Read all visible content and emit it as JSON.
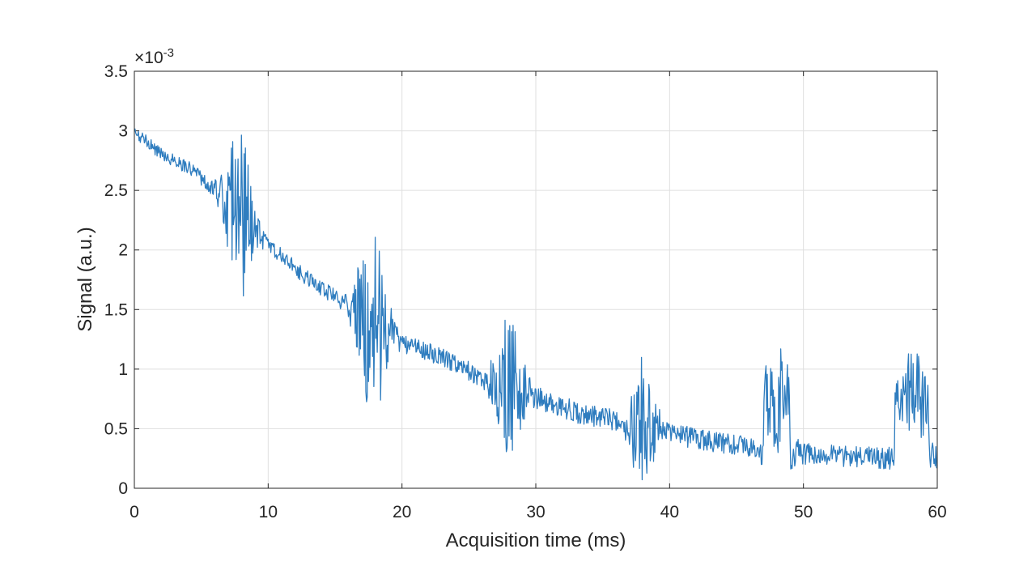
{
  "chart_data": {
    "type": "line",
    "xlabel": "Acquisition time (ms)",
    "ylabel": "Signal (a.u.)",
    "y_exponent_label": "×10",
    "y_exponent_power": "-3",
    "xlim": [
      0,
      60
    ],
    "ylim": [
      0,
      3.5
    ],
    "xticks": [
      0,
      10,
      20,
      30,
      40,
      50,
      60
    ],
    "yticks": [
      0,
      0.5,
      1,
      1.5,
      2,
      2.5,
      3,
      3.5
    ],
    "xtick_labels": [
      "0",
      "10",
      "20",
      "30",
      "40",
      "50",
      "60"
    ],
    "ytick_labels": [
      "0",
      "0.5",
      "1",
      "1.5",
      "2",
      "2.5",
      "3",
      "3.5"
    ],
    "grid": true,
    "line_color": "#2f7dbf",
    "series": [
      {
        "x": [
          0,
          0.5,
          1,
          1.5,
          2,
          2.5,
          3,
          3.5,
          4,
          4.5,
          5,
          5.5,
          6,
          6.5,
          7,
          7.5,
          8,
          8.5,
          9,
          9.5,
          10,
          10.5,
          11,
          11.5,
          12,
          12.5,
          13,
          13.5,
          14,
          14.5,
          15,
          15.5,
          16,
          16.5,
          17,
          17.5,
          18,
          18.5,
          19,
          19.5,
          20,
          20.5,
          21,
          21.5,
          22,
          22.5,
          23,
          23.5,
          24,
          24.5,
          25,
          25.5,
          26,
          26.5,
          27,
          27.5,
          28,
          28.5,
          29,
          29.5,
          30,
          30.5,
          31,
          31.5,
          32,
          32.5,
          33,
          33.5,
          34,
          34.5,
          35,
          35.5,
          36,
          36.5,
          37,
          37.5,
          38,
          38.5,
          39,
          39.5,
          40,
          40.5,
          41,
          41.5,
          42,
          42.5,
          43,
          43.5,
          44,
          44.5,
          45,
          45.5,
          46,
          46.5,
          47,
          47.5,
          48,
          48.5,
          49,
          49.5,
          50,
          50.5,
          51,
          51.5,
          52,
          52.5,
          53,
          53.5,
          54,
          54.5,
          55,
          55.5,
          56,
          56.5,
          57,
          57.5,
          58,
          58.5,
          59,
          59.5,
          60
        ],
        "y": [
          2.98,
          2.95,
          2.9,
          2.85,
          2.82,
          2.78,
          2.75,
          2.72,
          2.7,
          2.66,
          2.6,
          2.55,
          2.5,
          2.46,
          2.42,
          2.38,
          2.3,
          2.2,
          2.15,
          2.1,
          2.05,
          2.0,
          1.95,
          1.9,
          1.85,
          1.8,
          1.76,
          1.72,
          1.68,
          1.64,
          1.6,
          1.56,
          1.52,
          1.48,
          1.44,
          1.4,
          1.36,
          1.32,
          1.28,
          1.25,
          1.22,
          1.2,
          1.18,
          1.16,
          1.14,
          1.12,
          1.1,
          1.07,
          1.04,
          1.01,
          0.98,
          0.95,
          0.92,
          0.9,
          0.88,
          0.86,
          0.84,
          0.82,
          0.8,
          0.78,
          0.76,
          0.74,
          0.72,
          0.7,
          0.68,
          0.66,
          0.64,
          0.62,
          0.61,
          0.6,
          0.59,
          0.58,
          0.57,
          0.56,
          0.55,
          0.54,
          0.53,
          0.52,
          0.5,
          0.48,
          0.46,
          0.45,
          0.44,
          0.43,
          0.42,
          0.41,
          0.4,
          0.39,
          0.38,
          0.37,
          0.36,
          0.35,
          0.34,
          0.33,
          0.32,
          0.32,
          0.31,
          0.31,
          0.3,
          0.3,
          0.29,
          0.29,
          0.28,
          0.28,
          0.28,
          0.27,
          0.27,
          0.27,
          0.26,
          0.26,
          0.26,
          0.25,
          0.25,
          0.25,
          0.24,
          0.24,
          0.24,
          0.23,
          0.23,
          0.23,
          0.23
        ]
      }
    ]
  }
}
